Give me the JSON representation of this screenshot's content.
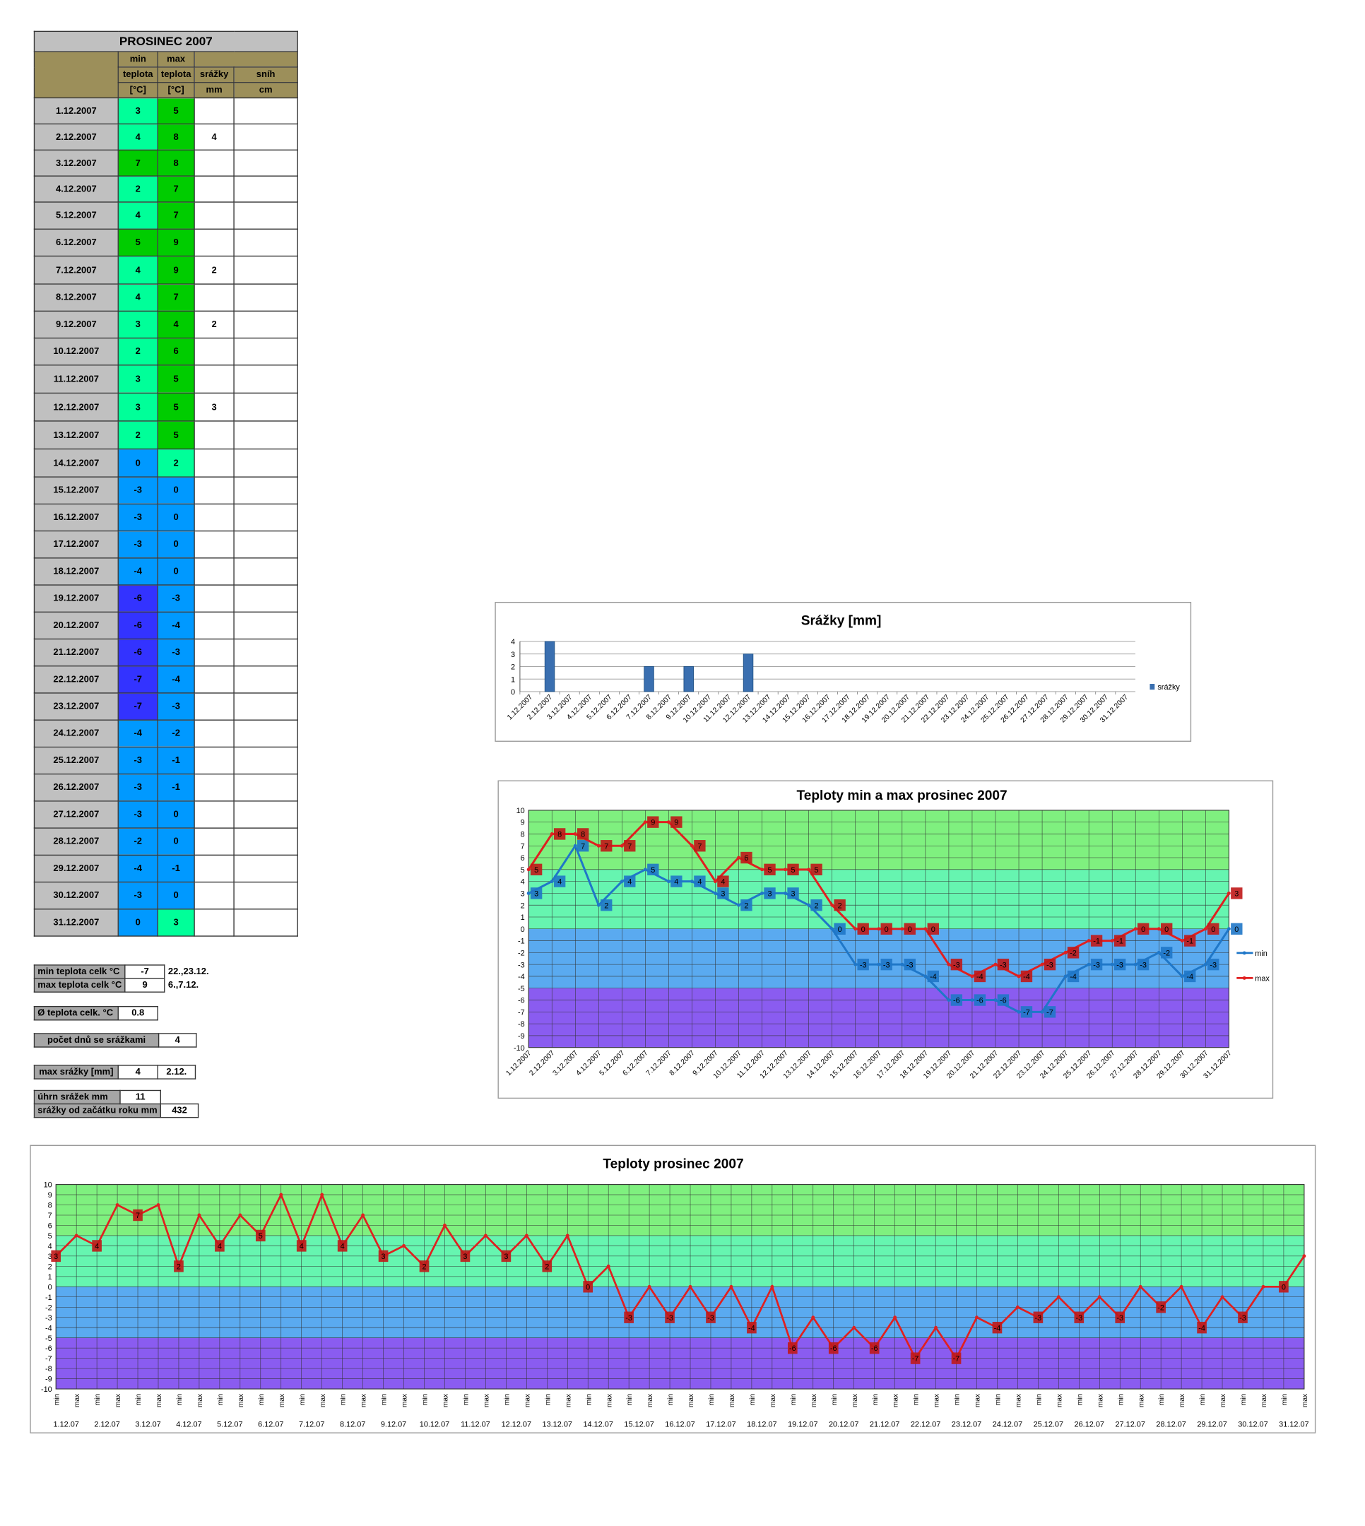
{
  "table": {
    "title": "PROSINEC 2007",
    "h1_min": "min",
    "h1_max": "max",
    "h2_teplota": "teplota",
    "h2_srazky": "srážky",
    "h2_snih": "sníh",
    "h3_unit": "[°C]",
    "h3_mm": "mm",
    "h3_cm": "cm",
    "rows": [
      {
        "date": "1.12.2007",
        "min": "3",
        "max": "5",
        "rain": ""
      },
      {
        "date": "2.12.2007",
        "min": "4",
        "max": "8",
        "rain": "4"
      },
      {
        "date": "3.12.2007",
        "min": "7",
        "max": "8",
        "rain": ""
      },
      {
        "date": "4.12.2007",
        "min": "2",
        "max": "7",
        "rain": ""
      },
      {
        "date": "5.12.2007",
        "min": "4",
        "max": "7",
        "rain": ""
      },
      {
        "date": "6.12.2007",
        "min": "5",
        "max": "9",
        "rain": ""
      },
      {
        "date": "7.12.2007",
        "min": "4",
        "max": "9",
        "rain": "2"
      },
      {
        "date": "8.12.2007",
        "min": "4",
        "max": "7",
        "rain": ""
      },
      {
        "date": "9.12.2007",
        "min": "3",
        "max": "4",
        "rain": "2"
      },
      {
        "date": "10.12.2007",
        "min": "2",
        "max": "6",
        "rain": ""
      },
      {
        "date": "11.12.2007",
        "min": "3",
        "max": "5",
        "rain": ""
      },
      {
        "date": "12.12.2007",
        "min": "3",
        "max": "5",
        "rain": "3"
      },
      {
        "date": "13.12.2007",
        "min": "2",
        "max": "5",
        "rain": ""
      },
      {
        "date": "14.12.2007",
        "min": "0",
        "max": "2",
        "rain": ""
      },
      {
        "date": "15.12.2007",
        "min": "-3",
        "max": "0",
        "rain": ""
      },
      {
        "date": "16.12.2007",
        "min": "-3",
        "max": "0",
        "rain": ""
      },
      {
        "date": "17.12.2007",
        "min": "-3",
        "max": "0",
        "rain": ""
      },
      {
        "date": "18.12.2007",
        "min": "-4",
        "max": "0",
        "rain": ""
      },
      {
        "date": "19.12.2007",
        "min": "-6",
        "max": "-3",
        "rain": ""
      },
      {
        "date": "20.12.2007",
        "min": "-6",
        "max": "-4",
        "rain": ""
      },
      {
        "date": "21.12.2007",
        "min": "-6",
        "max": "-3",
        "rain": ""
      },
      {
        "date": "22.12.2007",
        "min": "-7",
        "max": "-4",
        "rain": ""
      },
      {
        "date": "23.12.2007",
        "min": "-7",
        "max": "-3",
        "rain": ""
      },
      {
        "date": "24.12.2007",
        "min": "-4",
        "max": "-2",
        "rain": ""
      },
      {
        "date": "25.12.2007",
        "min": "-3",
        "max": "-1",
        "rain": ""
      },
      {
        "date": "26.12.2007",
        "min": "-3",
        "max": "-1",
        "rain": ""
      },
      {
        "date": "27.12.2007",
        "min": "-3",
        "max": "0",
        "rain": ""
      },
      {
        "date": "28.12.2007",
        "min": "-2",
        "max": "0",
        "rain": ""
      },
      {
        "date": "29.12.2007",
        "min": "-4",
        "max": "-1",
        "rain": ""
      },
      {
        "date": "30.12.2007",
        "min": "-3",
        "max": "0",
        "rain": ""
      },
      {
        "date": "31.12.2007",
        "min": "0",
        "max": "3",
        "rain": ""
      }
    ]
  },
  "summary": {
    "min_label": "min teplota celk °C",
    "min_value": "-7",
    "min_days": "22.,23.12.",
    "max_label": "max teplota celk °C",
    "max_value": "9",
    "max_days": "6.,7.12.",
    "avg_label": "Ø teplota celk. °C",
    "avg_value": "0.8",
    "raindays_label": "počet dnů se srážkami",
    "raindays_value": "4",
    "maxrain_label": "max srážky [mm]",
    "maxrain_value": "4",
    "maxrain_day": "2.12.",
    "total_label": "úhrn srážek  mm",
    "total_value": "11",
    "year_label": "srážky od začátku roku mm",
    "year_value": "432"
  },
  "colors": {
    "cell_green_dark": "#00cc00",
    "cell_green_light": "#00ff99",
    "cell_blue": "#0099ff",
    "cell_blue_dark": "#3333ff",
    "band_green": "#7ff07f",
    "band_teal": "#66f5b0",
    "band_blue": "#5aaaf0",
    "band_purple": "#8a5cf0",
    "series_min": "#1f77c8",
    "series_max": "#e02020",
    "bar": "#3a6fb0"
  },
  "chart_data": [
    {
      "type": "bar",
      "title": "Srážky [mm]",
      "categories": [
        "1.12.2007",
        "2.12.2007",
        "3.12.2007",
        "4.12.2007",
        "5.12.2007",
        "6.12.2007",
        "7.12.2007",
        "8.12.2007",
        "9.12.2007",
        "10.12.2007",
        "11.12.2007",
        "12.12.2007",
        "13.12.2007",
        "14.12.2007",
        "15.12.2007",
        "16.12.2007",
        "17.12.2007",
        "18.12.2007",
        "19.12.2007",
        "20.12.2007",
        "21.12.2007",
        "22.12.2007",
        "23.12.2007",
        "24.12.2007",
        "25.12.2007",
        "26.12.2007",
        "27.12.2007",
        "28.12.2007",
        "29.12.2007",
        "30.12.2007",
        "31.12.2007"
      ],
      "series": [
        {
          "name": "srážky",
          "values": [
            0,
            4,
            0,
            0,
            0,
            0,
            2,
            0,
            2,
            0,
            0,
            3,
            0,
            0,
            0,
            0,
            0,
            0,
            0,
            0,
            0,
            0,
            0,
            0,
            0,
            0,
            0,
            0,
            0,
            0,
            0
          ]
        }
      ],
      "ylim": [
        0,
        4
      ],
      "yticks": [
        0,
        1,
        2,
        3,
        4
      ],
      "legend": "right"
    },
    {
      "type": "line",
      "title": "Teploty min a max prosinec 2007",
      "categories": [
        "1.12.2007",
        "2.12.2007",
        "3.12.2007",
        "4.12.2007",
        "5.12.2007",
        "6.12.2007",
        "7.12.2007",
        "8.12.2007",
        "9.12.2007",
        "10.12.2007",
        "11.12.2007",
        "12.12.2007",
        "13.12.2007",
        "14.12.2007",
        "15.12.2007",
        "16.12.2007",
        "17.12.2007",
        "18.12.2007",
        "19.12.2007",
        "20.12.2007",
        "21.12.2007",
        "22.12.2007",
        "23.12.2007",
        "24.12.2007",
        "25.12.2007",
        "26.12.2007",
        "27.12.2007",
        "28.12.2007",
        "29.12.2007",
        "30.12.2007",
        "31.12.2007"
      ],
      "series": [
        {
          "name": "min",
          "values": [
            3,
            4,
            7,
            2,
            4,
            5,
            4,
            4,
            3,
            2,
            3,
            3,
            2,
            0,
            -3,
            -3,
            -3,
            -4,
            -6,
            -6,
            -6,
            -7,
            -7,
            -4,
            -3,
            -3,
            -3,
            -2,
            -4,
            -3,
            0
          ]
        },
        {
          "name": "max",
          "values": [
            5,
            8,
            8,
            7,
            7,
            9,
            9,
            7,
            4,
            6,
            5,
            5,
            5,
            2,
            0,
            0,
            0,
            0,
            -3,
            -4,
            -3,
            -4,
            -3,
            -2,
            -1,
            -1,
            0,
            0,
            -1,
            0,
            3
          ]
        }
      ],
      "ylim": [
        -10,
        10
      ],
      "legend": "right",
      "grid": true
    },
    {
      "type": "line",
      "title": "Teploty prosinec 2007",
      "tick_min": "min",
      "tick_max": "max",
      "day_labels": [
        "1.12.07",
        "2.12.07",
        "3.12.07",
        "4.12.07",
        "5.12.07",
        "6.12.07",
        "7.12.07",
        "8.12.07",
        "9.12.07",
        "10.12.07",
        "11.12.07",
        "12.12.07",
        "13.12.07",
        "14.12.07",
        "15.12.07",
        "16.12.07",
        "17.12.07",
        "18.12.07",
        "19.12.07",
        "20.12.07",
        "21.12.07",
        "22.12.07",
        "23.12.07",
        "24.12.07",
        "25.12.07",
        "26.12.07",
        "27.12.07",
        "28.12.07",
        "29.12.07",
        "30.12.07",
        "31.12.07"
      ],
      "values": [
        3,
        5,
        4,
        8,
        7,
        8,
        2,
        7,
        4,
        7,
        5,
        9,
        4,
        9,
        4,
        7,
        3,
        4,
        2,
        6,
        3,
        5,
        3,
        5,
        2,
        5,
        0,
        2,
        -3,
        0,
        -3,
        0,
        -3,
        0,
        -4,
        0,
        -6,
        -3,
        -6,
        -4,
        -6,
        -3,
        -7,
        -4,
        -7,
        -3,
        -4,
        -2,
        -3,
        -1,
        -3,
        -1,
        -3,
        0,
        -2,
        0,
        -4,
        -1,
        -3,
        0,
        0,
        3
      ],
      "ylim": [
        -10,
        10
      ],
      "grid": true
    }
  ]
}
